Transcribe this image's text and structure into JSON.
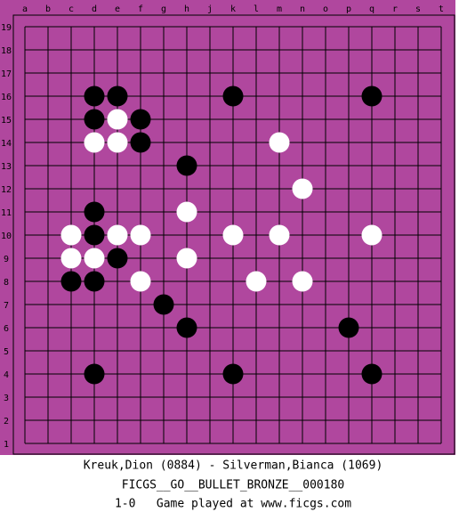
{
  "board": {
    "columns": [
      "a",
      "b",
      "c",
      "d",
      "e",
      "f",
      "g",
      "h",
      "j",
      "k",
      "l",
      "m",
      "n",
      "o",
      "p",
      "q",
      "r",
      "s",
      "t"
    ],
    "rows": [
      19,
      18,
      17,
      16,
      15,
      14,
      13,
      12,
      11,
      10,
      9,
      8,
      7,
      6,
      5,
      4,
      3,
      2,
      1
    ],
    "black": [
      "d16",
      "e16",
      "k16",
      "q16",
      "d15",
      "f15",
      "f14",
      "h13",
      "d11",
      "d10",
      "e9",
      "c8",
      "d8",
      "g7",
      "h6",
      "p6",
      "d4",
      "k4",
      "q4"
    ],
    "white": [
      "e15",
      "d14",
      "e14",
      "m14",
      "n12",
      "h11",
      "c10",
      "e10",
      "f10",
      "k10",
      "m10",
      "q10",
      "c9",
      "d9",
      "h9",
      "f8",
      "l8",
      "n8"
    ]
  },
  "footer": {
    "players": "Kreuk,Dion (0884) - Silverman,Bianca (1069)",
    "event": "FICGS__GO__BULLET_BRONZE__000180",
    "result": "1-0   Game played at www.ficgs.com"
  }
}
